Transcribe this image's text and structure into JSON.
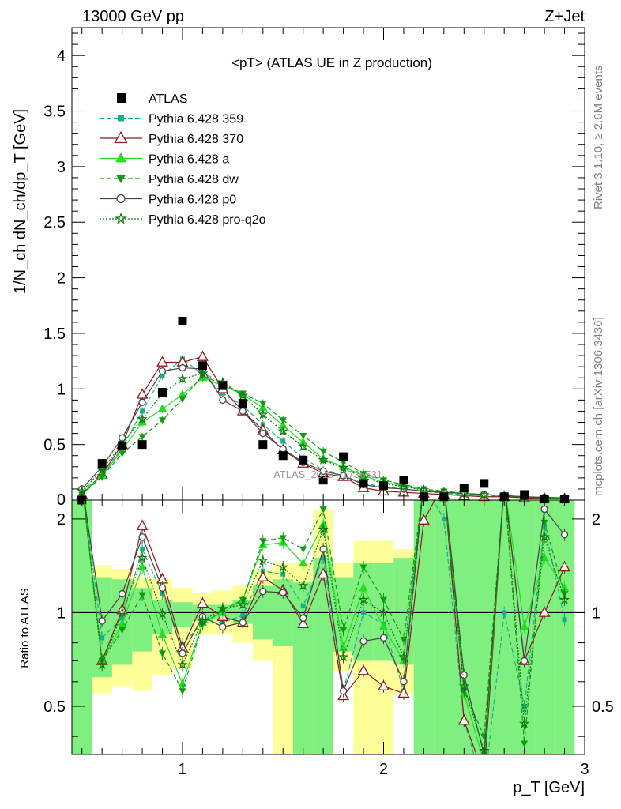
{
  "header": {
    "energy": "13000 GeV pp",
    "process": "Z+Jet",
    "plot_title": "<pT> (ATLAS UE in Z production)",
    "watermark": "ATLAS_2019_I1736531",
    "side_label_top": "Rivet 3.1.10, ≥ 2.6M events",
    "side_label_bottom": "mcplots.cern.ch [arXiv:1306.3436]"
  },
  "chart_data": {
    "type": "scatter",
    "xlabel": "p_T [GeV]",
    "ylabel": "1/N_ch dN_ch/dp_T [GeV]",
    "ratio_ylabel": "Ratio to ATLAS",
    "xlim": [
      0.45,
      3.0
    ],
    "ylim": [
      0,
      4.25
    ],
    "ratio_ylim": [
      0.35,
      2.3
    ],
    "x_ticks": [
      1,
      2,
      3
    ],
    "y_ticks": [
      "0.5",
      "1",
      "1.5",
      "2",
      "2.5",
      "3",
      "3.5",
      "4"
    ],
    "ratio_ticks": [
      "0.5",
      "1",
      "2"
    ],
    "x": [
      0.5,
      0.6,
      0.7,
      0.8,
      0.9,
      1.0,
      1.1,
      1.2,
      1.3,
      1.4,
      1.5,
      1.6,
      1.7,
      1.8,
      1.9,
      2.0,
      2.1,
      2.2,
      2.3,
      2.4,
      2.5,
      2.6,
      2.7,
      2.8,
      2.9
    ],
    "data": {
      "name": "ATLAS",
      "color": "#000000",
      "values": [
        0.0,
        0.33,
        0.49,
        0.5,
        0.97,
        1.61,
        1.21,
        1.03,
        0.87,
        0.5,
        0.4,
        0.36,
        0.18,
        0.39,
        0.15,
        0.13,
        0.18,
        0.03,
        0.03,
        0.11,
        0.15,
        0.03,
        0.05,
        0.01,
        0.01
      ]
    },
    "series": [
      {
        "name": "Pythia 6.428 359",
        "color": "#1aaf87",
        "marker": "square",
        "dash": "6,3",
        "values": [
          0.08,
          0.22,
          0.47,
          0.8,
          1.12,
          1.27,
          1.13,
          0.96,
          0.85,
          0.68,
          0.53,
          0.38,
          0.27,
          0.22,
          0.15,
          0.12,
          0.1,
          0.08,
          0.06,
          0.05,
          0.04,
          0.03,
          0.025,
          0.02,
          0.015
        ],
        "ratio": [
          2.6,
          0.83,
          0.96,
          1.6,
          1.15,
          0.79,
          0.93,
          0.93,
          0.98,
          1.36,
          1.33,
          1.05,
          1.5,
          0.56,
          1.0,
          0.92,
          0.56,
          2.6,
          2.0,
          0.45,
          0.27,
          1.0,
          0.5,
          1.9,
          0.95
        ]
      },
      {
        "name": "Pythia 6.428 370",
        "color": "#8b1a1a",
        "marker": "triangle-open",
        "dash": "",
        "values": [
          0.05,
          0.23,
          0.5,
          0.95,
          1.24,
          1.24,
          1.29,
          1.0,
          0.8,
          0.63,
          0.45,
          0.33,
          0.24,
          0.21,
          0.11,
          0.08,
          0.07,
          0.06,
          0.05,
          0.04,
          0.03,
          0.03,
          0.02,
          0.015,
          0.012
        ],
        "ratio": [
          2.6,
          0.7,
          1.02,
          1.9,
          1.28,
          0.77,
          1.07,
          0.97,
          0.93,
          1.3,
          1.18,
          0.92,
          1.33,
          0.54,
          0.65,
          0.58,
          0.55,
          1.98,
          2.6,
          0.45,
          0.3,
          2.6,
          0.7,
          1.0,
          1.4
        ]
      },
      {
        "name": "Pythia 6.428 a",
        "color": "#22dd22",
        "marker": "triangle",
        "dash": "",
        "values": [
          0.06,
          0.22,
          0.45,
          0.7,
          0.82,
          0.95,
          1.1,
          1.03,
          0.95,
          0.83,
          0.67,
          0.52,
          0.37,
          0.3,
          0.22,
          0.16,
          0.13,
          0.09,
          0.07,
          0.06,
          0.05,
          0.04,
          0.03,
          0.02,
          0.016
        ],
        "ratio": [
          2.6,
          0.7,
          0.92,
          1.4,
          0.85,
          0.59,
          0.93,
          1.0,
          1.1,
          1.65,
          1.68,
          1.44,
          1.92,
          0.77,
          1.2,
          0.9,
          0.7,
          2.6,
          2.6,
          0.55,
          0.33,
          2.6,
          0.9,
          1.5,
          1.2
        ]
      },
      {
        "name": "Pythia 6.428 dw",
        "color": "#119911",
        "marker": "triangle-down",
        "dash": "6,3",
        "values": [
          0.05,
          0.21,
          0.42,
          0.57,
          0.72,
          0.91,
          1.12,
          1.04,
          0.96,
          0.87,
          0.72,
          0.58,
          0.44,
          0.34,
          0.24,
          0.18,
          0.14,
          0.1,
          0.08,
          0.06,
          0.05,
          0.04,
          0.03,
          0.02,
          0.016
        ],
        "ratio": [
          2.6,
          0.7,
          0.88,
          1.14,
          0.74,
          0.56,
          0.92,
          1.02,
          1.1,
          1.7,
          1.74,
          1.6,
          2.15,
          0.88,
          1.4,
          1.1,
          0.82,
          2.6,
          2.6,
          0.56,
          0.4,
          2.6,
          0.38,
          1.95,
          1.15
        ]
      },
      {
        "name": "Pythia 6.428 p0",
        "color": "#444444",
        "marker": "circle-open",
        "dash": "",
        "values": [
          0.1,
          0.3,
          0.56,
          0.88,
          1.16,
          1.19,
          1.18,
          0.9,
          0.8,
          0.6,
          0.46,
          0.34,
          0.26,
          0.22,
          0.14,
          0.11,
          0.1,
          0.08,
          0.07,
          0.06,
          0.05,
          0.04,
          0.03,
          0.025,
          0.02
        ],
        "ratio": [
          2.6,
          0.94,
          1.15,
          1.75,
          1.2,
          0.74,
          0.97,
          0.9,
          0.93,
          1.17,
          1.16,
          0.96,
          1.6,
          0.56,
          0.81,
          0.83,
          0.6,
          2.6,
          2.6,
          0.63,
          0.35,
          2.6,
          0.7,
          2.15,
          1.78
        ]
      },
      {
        "name": "Pythia 6.428 pro-q2o",
        "color": "#117711",
        "marker": "star-open",
        "dash": "2,2",
        "values": [
          0.08,
          0.27,
          0.51,
          0.73,
          0.96,
          1.09,
          1.14,
          1.06,
          0.94,
          0.77,
          0.62,
          0.48,
          0.36,
          0.29,
          0.2,
          0.15,
          0.12,
          0.09,
          0.07,
          0.06,
          0.05,
          0.04,
          0.03,
          0.02,
          0.016
        ],
        "ratio": [
          2.6,
          0.68,
          1.0,
          1.5,
          0.99,
          0.68,
          0.94,
          1.03,
          1.06,
          1.47,
          1.4,
          1.22,
          1.85,
          0.72,
          1.1,
          1.0,
          0.72,
          2.6,
          2.6,
          0.58,
          0.36,
          2.6,
          0.44,
          1.75,
          1.1
        ]
      }
    ],
    "ratio_bands": {
      "green": [
        [
          2.6,
          0.1
        ],
        [
          1.3,
          0.62
        ],
        [
          1.28,
          0.68
        ],
        [
          1.2,
          0.75
        ],
        [
          1.1,
          0.85
        ],
        [
          1.08,
          0.9
        ],
        [
          1.06,
          0.94
        ],
        [
          1.06,
          0.95
        ],
        [
          1.1,
          0.92
        ],
        [
          1.22,
          0.82
        ],
        [
          1.28,
          0.78
        ],
        [
          1.25,
          0.3
        ],
        [
          1.5,
          0.3
        ],
        [
          1.3,
          0.75
        ],
        [
          1.45,
          0.7
        ],
        [
          1.45,
          0.7
        ],
        [
          1.5,
          0.68
        ],
        [
          2.6,
          0.3
        ],
        [
          2.6,
          0.3
        ],
        [
          2.6,
          0.3
        ],
        [
          2.6,
          0.3
        ],
        [
          2.6,
          0.3
        ],
        [
          2.6,
          0.3
        ],
        [
          2.6,
          0.3
        ],
        [
          2.6,
          0.3
        ]
      ],
      "yellow": [
        [
          2.6,
          0.1
        ],
        [
          1.42,
          0.55
        ],
        [
          1.38,
          0.58
        ],
        [
          1.3,
          0.56
        ],
        [
          1.28,
          0.63
        ],
        [
          1.2,
          0.66
        ],
        [
          1.16,
          0.85
        ],
        [
          1.18,
          0.85
        ],
        [
          1.22,
          0.8
        ],
        [
          1.38,
          0.7
        ],
        [
          1.45,
          0.3
        ],
        [
          1.45,
          0.65
        ],
        [
          2.15,
          0.3
        ],
        [
          1.45,
          0.65
        ],
        [
          1.7,
          0.3
        ],
        [
          1.7,
          0.3
        ],
        [
          1.6,
          0.55
        ],
        [
          2.6,
          0.3
        ],
        [
          2.6,
          0.3
        ],
        [
          2.6,
          0.3
        ],
        [
          2.6,
          0.3
        ],
        [
          2.6,
          0.3
        ],
        [
          2.6,
          0.3
        ],
        [
          2.6,
          0.3
        ],
        [
          2.6,
          0.3
        ]
      ]
    },
    "legend_position": "top-left",
    "grid": false
  }
}
